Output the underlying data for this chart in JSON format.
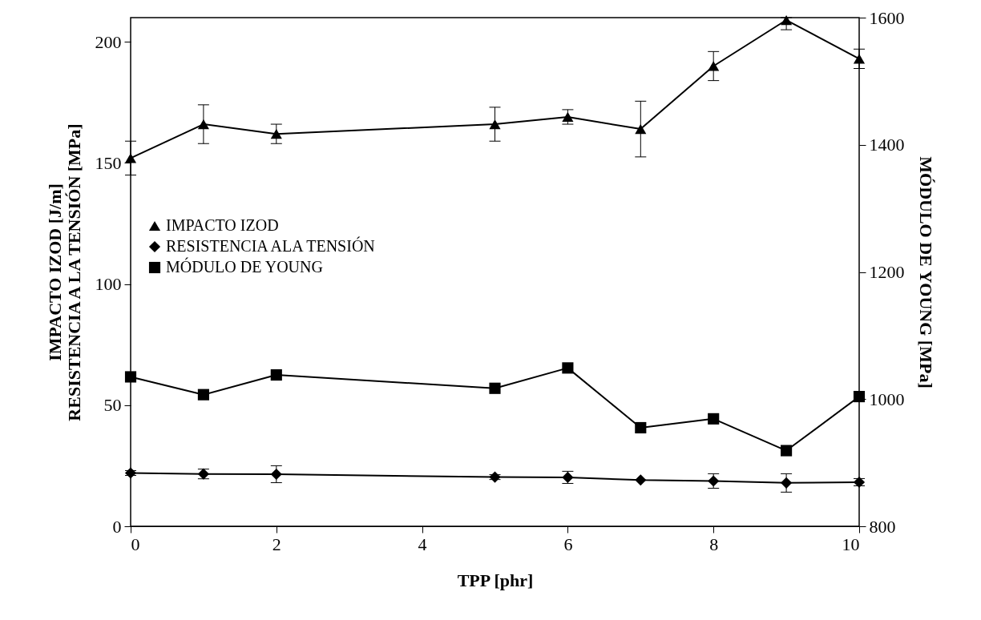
{
  "chart_data": {
    "type": "line",
    "xlabel": "TPP [phr]",
    "ylabel": "IMPACTO IZOD [J/m]\nRESISTENCIA A LA TENSIÓN [MPa]",
    "y2label": "MÓDULO DE YOUNG [MPa]",
    "x": [
      0,
      1,
      2,
      5,
      6,
      7,
      8,
      9,
      10
    ],
    "xlim": [
      0,
      10
    ],
    "xticks": [
      0,
      2,
      4,
      6,
      8,
      10
    ],
    "ylim": [
      0,
      210
    ],
    "yticks": [
      0,
      50,
      100,
      150,
      200
    ],
    "y2lim": [
      800,
      1600
    ],
    "y2ticks": [
      800,
      1000,
      1200,
      1400,
      1600
    ],
    "grid": false,
    "legend": "left",
    "line_style": "solid",
    "series": [
      {
        "name": "IMPACTO IZOD",
        "color": "#000000",
        "marker": "triangle",
        "values": [
          152,
          166,
          162,
          166,
          169,
          164,
          190,
          209,
          193
        ],
        "errors": [
          7,
          8,
          4,
          7,
          3,
          11.5,
          6,
          [
            205,
            210
          ],
          4
        ]
      },
      {
        "name": "RESISTENCIA ALA TENSIÓN",
        "color": "#000000",
        "marker": "diamond",
        "values": [
          22.0,
          21.6,
          21.5,
          20.3,
          20.2,
          19.1,
          18.7,
          17.9,
          18.2
        ],
        "errors": [
          1,
          2,
          3.5,
          1,
          2.5,
          null,
          3,
          3.8,
          1.5
        ]
      },
      {
        "name": "MÓDULO DE YOUNG",
        "color": "#000000",
        "marker": "square",
        "axis": "y2",
        "values": [
          1035,
          1007,
          1038,
          1017,
          1049,
          955,
          969,
          919,
          1004
        ]
      }
    ]
  }
}
